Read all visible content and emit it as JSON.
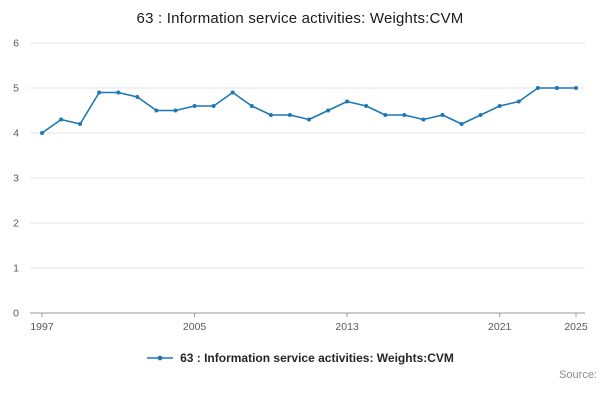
{
  "page": {
    "title": "63 : Information service activities: Weights:CVM",
    "source_label": "Source:"
  },
  "legend": {
    "label": "63 : Information service activities: Weights:CVM"
  },
  "chart_data": {
    "type": "line",
    "title": "63 : Information service activities: Weights:CVM",
    "series_name": "63 : Information service activities: Weights:CVM",
    "x": [
      1997,
      1998,
      1999,
      2000,
      2001,
      2002,
      2003,
      2004,
      2005,
      2006,
      2007,
      2008,
      2009,
      2010,
      2011,
      2012,
      2013,
      2014,
      2015,
      2016,
      2017,
      2018,
      2019,
      2020,
      2021,
      2022,
      2023,
      2024,
      2025
    ],
    "values": [
      4.0,
      4.3,
      4.2,
      4.9,
      4.9,
      4.8,
      4.5,
      4.5,
      4.6,
      4.6,
      4.9,
      4.6,
      4.4,
      4.4,
      4.3,
      4.5,
      4.7,
      4.6,
      4.4,
      4.4,
      4.3,
      4.4,
      4.2,
      4.4,
      4.6,
      4.7,
      5.0,
      5.0,
      5.0
    ],
    "xlabel": "",
    "ylabel": "",
    "xlim": [
      1997,
      2025
    ],
    "ylim": [
      0,
      6
    ],
    "xticks": [
      1997,
      2005,
      2013,
      2021,
      2025
    ],
    "yticks": [
      0,
      1,
      2,
      3,
      4,
      5,
      6
    ],
    "grid": "horizontal",
    "line_color": "#1f77b4",
    "marker": "point",
    "legend_position": "bottom-center"
  }
}
